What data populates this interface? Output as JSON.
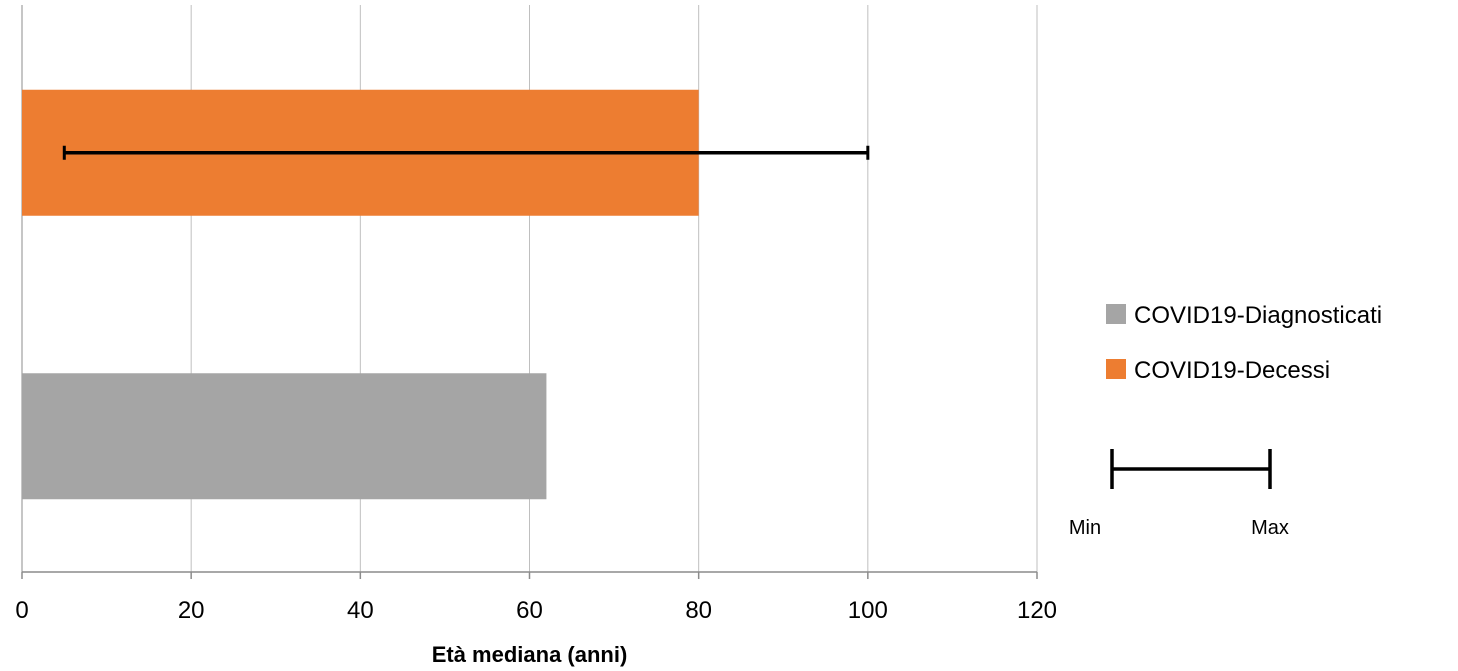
{
  "chart_data": {
    "type": "bar",
    "orientation": "horizontal",
    "categories": [
      "COVID19-Diagnosticati",
      "COVID19-Decessi"
    ],
    "series": [
      {
        "name": "COVID19-Diagnosticati",
        "values": [
          62,
          null
        ],
        "color": "#A5A5A5"
      },
      {
        "name": "COVID19-Decessi",
        "values": [
          null,
          80
        ],
        "color": "#ED7D31",
        "error_range": {
          "min": 5,
          "max": 100
        }
      }
    ],
    "xlabel": "Età mediana (anni)",
    "ylabel": "",
    "xlim": [
      0,
      120
    ],
    "x_ticks": [
      0,
      20,
      40,
      60,
      80,
      100,
      120
    ],
    "grid": true,
    "legend_position": "right",
    "error_bar_legend": {
      "min_label": "Min",
      "max_label": "Max"
    }
  }
}
